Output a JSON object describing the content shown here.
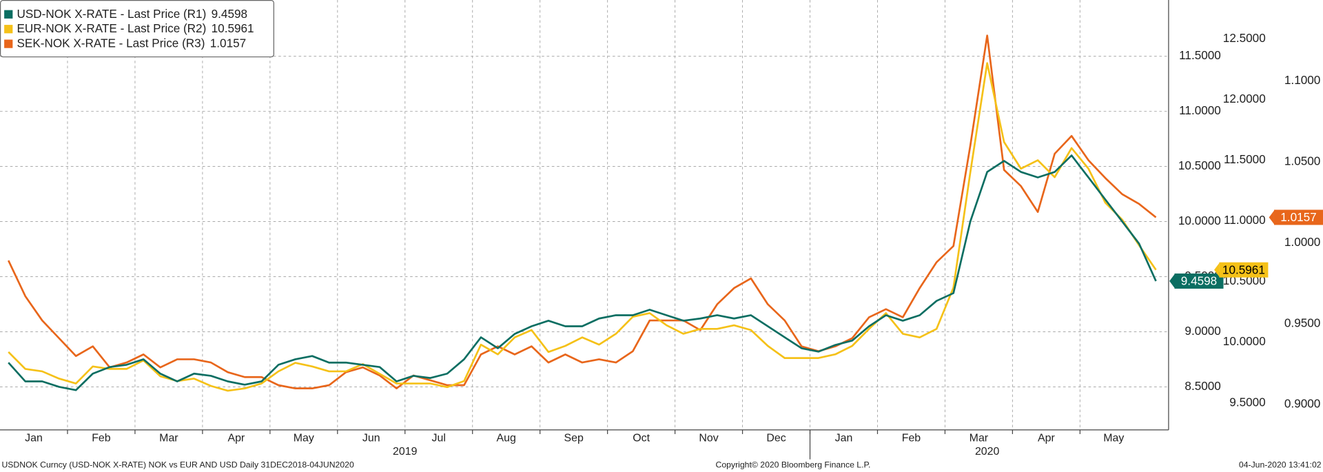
{
  "chart_data": {
    "type": "line",
    "categories": [
      "Jan",
      null,
      null,
      null,
      "Feb",
      null,
      null,
      null,
      "Mar",
      null,
      null,
      null,
      "Apr",
      null,
      null,
      null,
      "May",
      null,
      null,
      null,
      "Jun",
      null,
      null,
      null,
      "Jul",
      null,
      null,
      null,
      "Aug",
      null,
      null,
      null,
      "Sep",
      null,
      null,
      null,
      "Oct",
      null,
      null,
      null,
      "Nov",
      null,
      null,
      null,
      "Dec",
      null,
      null,
      null,
      "Jan",
      null,
      null,
      null,
      "Feb",
      null,
      null,
      null,
      "Mar",
      null,
      null,
      null,
      "Apr",
      null,
      null,
      null,
      "May",
      null,
      null,
      null,
      null
    ],
    "x_groups": [
      "2019",
      "2020"
    ],
    "series": [
      {
        "name": "USD-NOK X-RATE - Last Price (R1)",
        "color": "#0b6e62",
        "axis": "y",
        "values": [
          8.72,
          8.55,
          8.55,
          8.5,
          8.47,
          8.62,
          8.68,
          8.7,
          8.75,
          8.62,
          8.55,
          8.62,
          8.6,
          8.55,
          8.52,
          8.55,
          8.7,
          8.75,
          8.78,
          8.72,
          8.72,
          8.7,
          8.68,
          8.55,
          8.6,
          8.58,
          8.62,
          8.75,
          8.95,
          8.85,
          8.98,
          9.05,
          9.1,
          9.05,
          9.05,
          9.12,
          9.15,
          9.15,
          9.2,
          9.15,
          9.1,
          9.12,
          9.15,
          9.12,
          9.15,
          9.05,
          8.95,
          8.85,
          8.82,
          8.88,
          8.92,
          9.05,
          9.15,
          9.1,
          9.15,
          9.28,
          9.35,
          10.0,
          10.45,
          10.55,
          10.45,
          10.4,
          10.45,
          10.6,
          10.4,
          10.2,
          10.0,
          9.8,
          9.4598
        ]
      },
      {
        "name": "EUR-NOK X-RATE - Last Price (R2)",
        "color": "#f5c118",
        "axis": "y2",
        "values": [
          9.92,
          9.78,
          9.76,
          9.7,
          9.66,
          9.8,
          9.78,
          9.78,
          9.85,
          9.72,
          9.68,
          9.7,
          9.64,
          9.6,
          9.62,
          9.66,
          9.76,
          9.83,
          9.8,
          9.76,
          9.76,
          9.82,
          9.74,
          9.66,
          9.66,
          9.66,
          9.63,
          9.68,
          9.98,
          9.9,
          10.04,
          10.1,
          9.92,
          9.97,
          10.04,
          9.98,
          10.07,
          10.21,
          10.24,
          10.14,
          10.07,
          10.11,
          10.11,
          10.14,
          10.1,
          9.97,
          9.87,
          9.87,
          9.87,
          9.9,
          9.97,
          10.11,
          10.24,
          10.07,
          10.04,
          10.11,
          10.45,
          11.4,
          12.3,
          11.65,
          11.43,
          11.5,
          11.36,
          11.6,
          11.43,
          11.15,
          11.01,
          10.8,
          10.5961
        ]
      },
      {
        "name": "SEK-NOK X-RATE - Last Price (R3)",
        "color": "#e8661b",
        "axis": "y3",
        "values": [
          0.989,
          0.967,
          0.952,
          0.941,
          0.93,
          0.936,
          0.923,
          0.926,
          0.931,
          0.923,
          0.928,
          0.928,
          0.926,
          0.92,
          0.917,
          0.917,
          0.912,
          0.91,
          0.91,
          0.912,
          0.92,
          0.923,
          0.918,
          0.91,
          0.918,
          0.915,
          0.912,
          0.912,
          0.931,
          0.936,
          0.931,
          0.936,
          0.926,
          0.931,
          0.926,
          0.928,
          0.926,
          0.933,
          0.952,
          0.952,
          0.952,
          0.946,
          0.962,
          0.972,
          0.978,
          0.962,
          0.952,
          0.936,
          0.933,
          0.936,
          0.941,
          0.954,
          0.959,
          0.954,
          0.972,
          0.988,
          0.998,
          1.06,
          1.128,
          1.045,
          1.035,
          1.019,
          1.055,
          1.066,
          1.051,
          1.04,
          1.03,
          1.024,
          1.0157
        ]
      }
    ],
    "ylim": [
      8.11,
      12.01
    ],
    "yticks": [
      {
        "value": 8.5,
        "label": "8.5000"
      },
      {
        "value": 9,
        "label": "9.0000"
      },
      {
        "value": 9.5,
        "label": "9.5000"
      },
      {
        "value": 10,
        "label": "10.0000"
      },
      {
        "value": 10.5,
        "label": "10.5000"
      },
      {
        "value": 11,
        "label": "11.0000"
      },
      {
        "value": 11.5,
        "label": "11.5000"
      }
    ],
    "y2lim": [
      9.278,
      12.82
    ],
    "y2ticks": [
      {
        "value": 9.5,
        "label": "9.5000"
      },
      {
        "value": 10,
        "label": "10.0000"
      },
      {
        "value": 10.5,
        "label": "10.5000"
      },
      {
        "value": 11,
        "label": "11.0000"
      },
      {
        "value": 11.5,
        "label": "11.5000"
      },
      {
        "value": 12,
        "label": "12.0000"
      },
      {
        "value": 12.5,
        "label": "12.5000"
      }
    ],
    "y3lim": [
      0.8844,
      1.15
    ],
    "y3ticks": [
      {
        "value": 0.9,
        "label": "0.9000"
      },
      {
        "value": 0.95,
        "label": "0.9500"
      },
      {
        "value": 1,
        "label": "1.0000"
      },
      {
        "value": 1.05,
        "label": "1.0500"
      },
      {
        "value": 1.1,
        "label": "1.1000"
      }
    ],
    "grid": true,
    "legend": "top-left",
    "footer_left": "USDNOK Curncy (USD-NOK X-RATE) NOK vs EUR AND USD  Daily 31DEC2018-04JUN2020",
    "footer_center": "Copyright© 2020 Bloomberg Finance L.P.",
    "footer_right": "04-Jun-2020 13:41:02"
  }
}
